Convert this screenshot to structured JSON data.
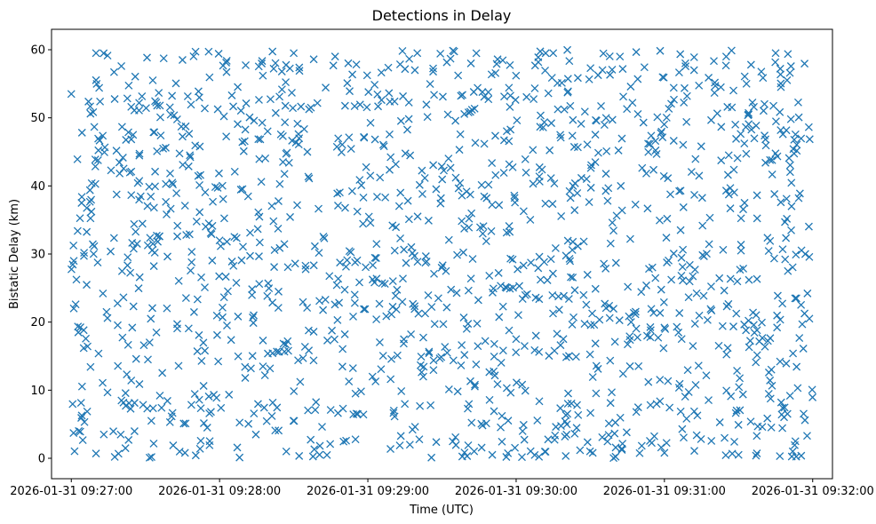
{
  "chart_data": {
    "type": "scatter",
    "title": "Detections in Delay",
    "xlabel": "Time (UTC)",
    "ylabel": "Bistatic Delay (km)",
    "marker": "x",
    "color": "#1f77b4",
    "grid": false,
    "xlim": [
      "2026-01-31 09:26:52",
      "2026-01-31 09:32:08"
    ],
    "ylim": [
      -3,
      63
    ],
    "x_range_of_points": [
      "2026-01-31 09:27:00",
      "2026-01-31 09:32:00"
    ],
    "y_range_of_points": [
      0,
      60
    ],
    "approx_point_count": 1500,
    "x_ticks": [
      "2026-01-31 09:27:00",
      "2026-01-31 09:28:00",
      "2026-01-31 09:29:00",
      "2026-01-31 09:30:00",
      "2026-01-31 09:31:00",
      "2026-01-31 09:32:00"
    ],
    "y_ticks": [
      0,
      10,
      20,
      30,
      40,
      50,
      60
    ],
    "series": [
      {
        "points": [
          {
            "t": "2026-01-31 09:27:00",
            "y": 53.5
          },
          {
            "t": "2026-01-31 09:27:01",
            "y": 29.0
          },
          {
            "t": "2026-01-31 09:27:01",
            "y": 22.0
          },
          {
            "t": "2026-01-31 09:27:03",
            "y": 4.0
          },
          {
            "t": "2026-01-31 09:27:10",
            "y": 59.5
          },
          {
            "t": "2026-01-31 09:27:10",
            "y": 0.7
          },
          {
            "t": "2026-01-31 09:27:25",
            "y": 47.5
          },
          {
            "t": "2026-01-31 09:27:31",
            "y": 14.5
          },
          {
            "t": "2026-01-31 09:27:45",
            "y": 58.5
          },
          {
            "t": "2026-01-31 09:27:46",
            "y": 0.8
          },
          {
            "t": "2026-01-31 09:28:00",
            "y": 32.0
          },
          {
            "t": "2026-01-31 09:28:03",
            "y": 19.5
          },
          {
            "t": "2026-01-31 09:28:27",
            "y": 1.0
          },
          {
            "t": "2026-01-31 09:28:30",
            "y": 59.5
          },
          {
            "t": "2026-01-31 09:28:55",
            "y": 9.5
          },
          {
            "t": "2026-01-31 09:29:01",
            "y": 41.5
          },
          {
            "t": "2026-01-31 09:29:20",
            "y": 59.5
          },
          {
            "t": "2026-01-31 09:29:40",
            "y": 19.0
          },
          {
            "t": "2026-01-31 09:30:00",
            "y": 17.5
          },
          {
            "t": "2026-01-31 09:30:08",
            "y": 18.0
          },
          {
            "t": "2026-01-31 09:30:15",
            "y": 59.5
          },
          {
            "t": "2026-01-31 09:30:31",
            "y": 0.8
          },
          {
            "t": "2026-01-31 09:30:42",
            "y": 59.0
          },
          {
            "t": "2026-01-31 09:31:00",
            "y": 0.8
          },
          {
            "t": "2026-01-31 09:31:12",
            "y": 57.0
          },
          {
            "t": "2026-01-31 09:31:25",
            "y": 59.0
          },
          {
            "t": "2026-01-31 09:31:30",
            "y": 0.5
          },
          {
            "t": "2026-01-31 09:31:45",
            "y": 59.5
          },
          {
            "t": "2026-01-31 09:31:53",
            "y": 2.5
          },
          {
            "t": "2026-01-31 09:31:57",
            "y": 30.0
          }
        ]
      }
    ]
  }
}
